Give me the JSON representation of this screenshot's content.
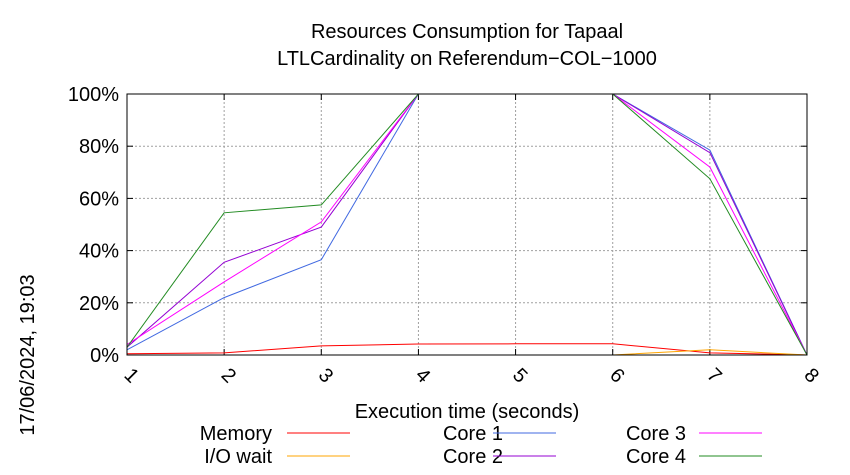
{
  "chart_data": {
    "type": "line",
    "title": [
      "Resources Consumption for Tapaal",
      "LTLCardinality on Referendum−COL−1000"
    ],
    "xlabel": "Execution time (seconds)",
    "ylabel": "",
    "side_label": "17/06/2024, 19:03",
    "x": [
      1,
      2,
      3,
      4,
      5,
      6,
      7,
      8
    ],
    "xlim": [
      1,
      8
    ],
    "ylim": [
      0,
      100
    ],
    "y_ticks": [
      "0%",
      "20%",
      "40%",
      "60%",
      "80%",
      "100%"
    ],
    "y_tick_values": [
      0,
      20,
      40,
      60,
      80,
      100
    ],
    "x_ticks": [
      "1",
      "2",
      "3",
      "4",
      "5",
      "6",
      "7",
      "8"
    ],
    "grid": true,
    "legend_placement": "bottom",
    "series": [
      {
        "name": "Memory",
        "color": "#ff0000",
        "values": [
          0.5,
          0.8,
          3.5,
          4.2,
          4.3,
          4.3,
          0.8,
          0
        ]
      },
      {
        "name": "I/O wait",
        "color": "#ffa500",
        "values": [
          0,
          0,
          0,
          0,
          0,
          0,
          2,
          0
        ]
      },
      {
        "name": "Core 1",
        "color": "#4169e1",
        "values": [
          2,
          22,
          36.5,
          100,
          100,
          100,
          78.5,
          0
        ]
      },
      {
        "name": "Core 2",
        "color": "#9400d3",
        "values": [
          3,
          35.5,
          49,
          100,
          100,
          100,
          77.5,
          0
        ]
      },
      {
        "name": "Core 3",
        "color": "#ff00ff",
        "values": [
          4,
          28,
          51,
          100,
          100,
          100,
          72,
          0
        ]
      },
      {
        "name": "Core 4",
        "color": "#228b22",
        "values": [
          3,
          54.5,
          57.5,
          100,
          100,
          100,
          67.5,
          0
        ]
      }
    ],
    "legend_order": [
      "Memory",
      "I/O wait",
      "Core 1",
      "Core 2",
      "Core 3",
      "Core 4"
    ]
  }
}
